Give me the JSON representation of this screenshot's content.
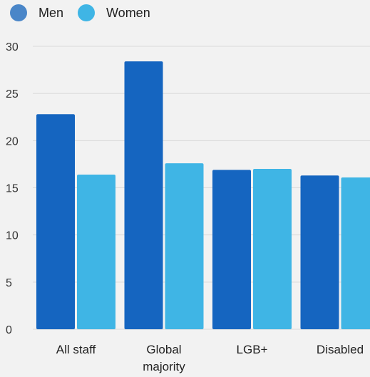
{
  "chart_data": {
    "type": "bar",
    "categories": [
      "All staff",
      "Global majority",
      "LGB+",
      "Disabled"
    ],
    "category_lines": [
      [
        "All staff"
      ],
      [
        "Global",
        "majority"
      ],
      [
        "LGB+"
      ],
      [
        "Disabled"
      ]
    ],
    "series": [
      {
        "name": "Men",
        "values": [
          22.8,
          28.4,
          16.9,
          16.3
        ],
        "color": "#1565c0"
      },
      {
        "name": "Women",
        "values": [
          16.4,
          17.6,
          17.0,
          16.1
        ],
        "color": "#3fb5e5"
      }
    ],
    "yticks": [
      0,
      5,
      10,
      15,
      20,
      25,
      30
    ],
    "ylim": [
      0,
      30
    ],
    "grid": true,
    "legend_position": "top-left",
    "title": "",
    "xlabel": "",
    "ylabel": ""
  }
}
